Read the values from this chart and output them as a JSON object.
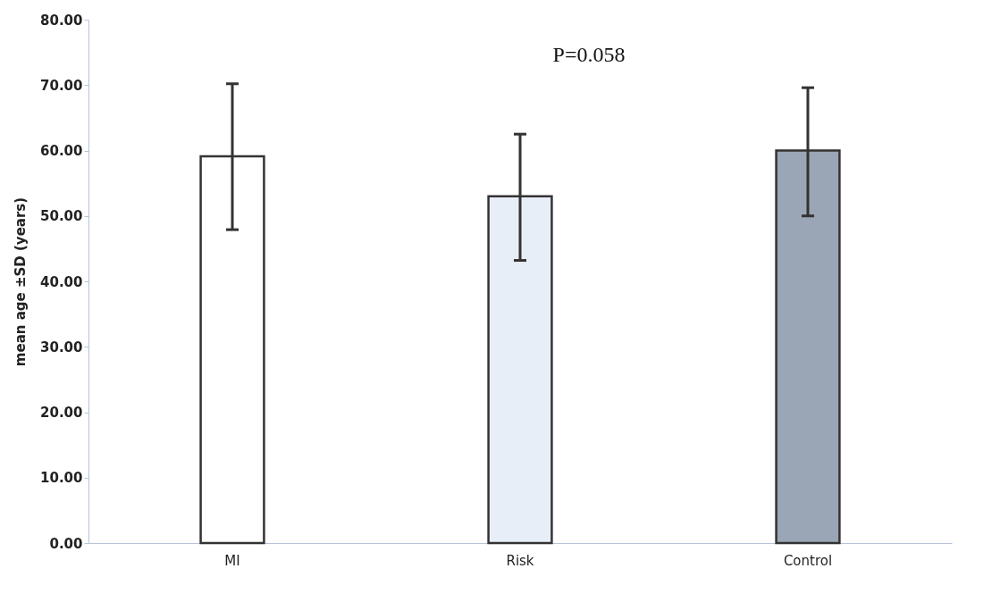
{
  "chart_data": {
    "type": "bar",
    "ylabel": "mean age ±SD (years)",
    "categories": [
      "MI",
      "Risk",
      "Control"
    ],
    "values": [
      59.1,
      53.0,
      60.0
    ],
    "colors": [
      "#ffffff",
      "#e8eef8",
      "#9aa5b5"
    ],
    "errors": [
      [
        47.9,
        70.2
      ],
      [
        43.2,
        62.5
      ],
      [
        50.0,
        69.6
      ]
    ],
    "ylim": [
      0,
      80
    ],
    "yticks": [
      {
        "value": 0,
        "label": "0.00"
      },
      {
        "value": 10,
        "label": "10.00"
      },
      {
        "value": 20,
        "label": "20.00"
      },
      {
        "value": 30,
        "label": "30.00"
      },
      {
        "value": 40,
        "label": "40.00"
      },
      {
        "value": 50,
        "label": "50.00"
      },
      {
        "value": 60,
        "label": "60.00"
      },
      {
        "value": 70,
        "label": "70.00"
      },
      {
        "value": 80,
        "label": "80.00"
      }
    ],
    "annotations": [
      "P=0.058"
    ],
    "grid": false
  }
}
